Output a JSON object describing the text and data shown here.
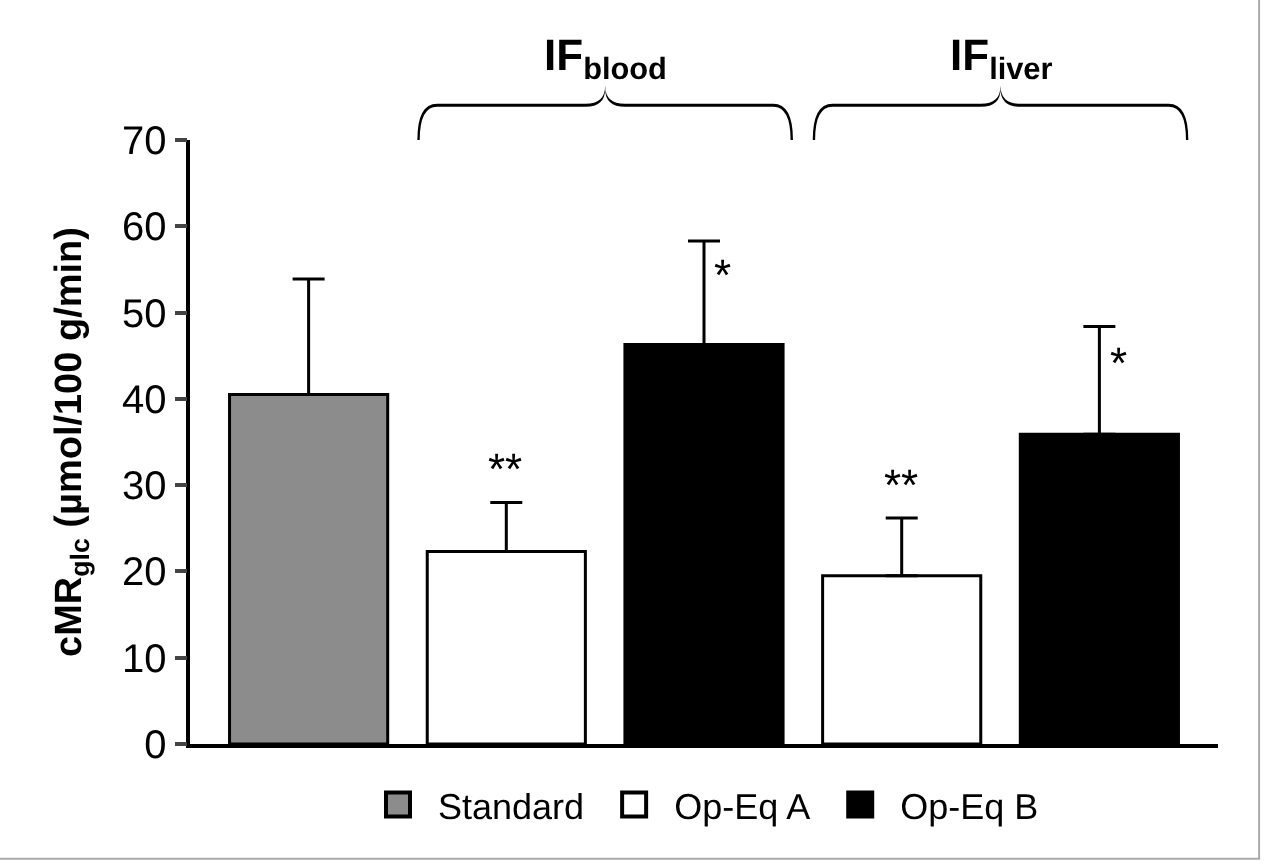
{
  "chart_data": {
    "type": "bar",
    "ylabel": "cMR$_{glc}$ (µmol/100 g/min)",
    "categories": [
      null,
      null,
      null,
      null,
      null
    ],
    "series": [
      {
        "name": "Standard",
        "color": "#8c8c8c",
        "values": [
          40.5,
          null,
          null,
          null,
          null
        ],
        "errors": [
          [
            40.5,
            53.9
          ],
          null,
          null,
          null,
          null
        ]
      },
      {
        "name": "Op-Eq A",
        "color": "#ffffff",
        "values": [
          null,
          22.3,
          null,
          19.5,
          null
        ],
        "errors": [
          null,
          [
            22.3,
            28.0
          ],
          null,
          [
            19.5,
            26.2
          ],
          null
        ],
        "value_labels": [
          null,
          "**",
          null,
          "**",
          null
        ]
      },
      {
        "name": "Op-Eq B",
        "color": "#000000",
        "values": [
          null,
          null,
          46.3,
          null,
          35.9
        ],
        "errors": [
          null,
          null,
          [
            46.3,
            58.3
          ],
          null,
          [
            35.9,
            48.4
          ]
        ],
        "value_labels": [
          null,
          null,
          "*",
          null,
          "*"
        ]
      }
    ],
    "annotations": [
      "IF$_{blood}$",
      "IF$_{liver}$"
    ],
    "ylim": [
      0,
      70
    ],
    "yticks": [
      0,
      10,
      20,
      30,
      40,
      50,
      60,
      70
    ],
    "tick_labels": "y",
    "grid": false,
    "legend": "bottom"
  }
}
